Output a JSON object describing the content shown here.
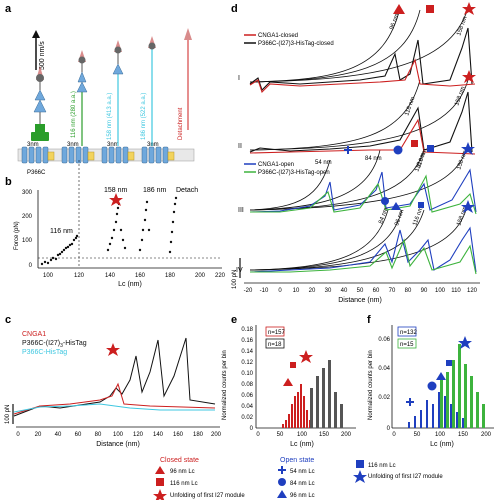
{
  "panels": {
    "a": "a",
    "b": "b",
    "c": "c",
    "d": "d",
    "e": "e",
    "f": "f"
  },
  "a": {
    "velocity": "500 nm/s",
    "segments": [
      "116 nm (280 a.a.)",
      "158 nm (413 a.a.)",
      "186 nm (522 a.a.)"
    ],
    "detachment": "Detachment",
    "construct": "P366C",
    "scale_label": "3nm"
  },
  "b": {
    "ylabel": "Force (pN)",
    "xlabel": "Lc (nm)",
    "yticks": [
      "300",
      "200",
      "100",
      "0"
    ],
    "xticks": [
      "100",
      "120",
      "140",
      "160",
      "180",
      "200",
      "220"
    ],
    "annotations": [
      "116 nm",
      "158 nm",
      "186 nm",
      "Detach"
    ]
  },
  "c": {
    "legend": [
      "CNGA1",
      "P366C-(I27)3-HisTag",
      "P366C-HisTag"
    ],
    "legend_main": "P366C-(I27)",
    "legend_sub": "3",
    "legend_tail": "-HisTag",
    "scale": "100 pN",
    "xlabel": "Distance (nm)",
    "xticks": [
      "0",
      "20",
      "40",
      "60",
      "80",
      "100",
      "120",
      "140",
      "160",
      "180",
      "200"
    ]
  },
  "d": {
    "legend_closed": [
      "CNGA1-closed",
      "P366C-(I27)3-HisTag-closed"
    ],
    "legend_open": [
      "CNGA1-open",
      "P366C-(I27)3-HisTag-open"
    ],
    "rows": [
      "I",
      "II",
      "III",
      "IV"
    ],
    "scale": "100 pN",
    "xlabel": "Distance (nm)",
    "xticks": [
      "-20",
      "-10",
      "0",
      "10",
      "20",
      "30",
      "40",
      "50",
      "60",
      "70",
      "80",
      "90",
      "100",
      "110",
      "120"
    ],
    "row1_labels": [
      "96 nm",
      "116 nm",
      "158 nm"
    ],
    "row2_labels": [
      "116 nm",
      "158 nm"
    ],
    "row3_labels": [
      "54 nm",
      "84 nm",
      "116 nm",
      "158 nm"
    ],
    "row4_labels": [
      "84 nm",
      "96 nm",
      "116 nm",
      "158 nm"
    ]
  },
  "e": {
    "ylabel": "Normalized counts per bin",
    "xlabel": "Lc (nm)",
    "n1": "n=157",
    "n2": "n=18",
    "yticks": [
      "0.18",
      "0.16",
      "0.14",
      "0.12",
      "0.10",
      "0.08",
      "0.06",
      "0.04",
      "0.02",
      "0"
    ],
    "xticks": [
      "0",
      "50",
      "100",
      "150",
      "200"
    ]
  },
  "f": {
    "ylabel": "Normalized counts per bin",
    "xlabel": "Lc (nm)",
    "n1": "n=132",
    "n2": "n=15",
    "yticks": [
      "0.06",
      "0.04",
      "0.02",
      "0"
    ],
    "xticks": [
      "0",
      "50",
      "100",
      "150",
      "200"
    ]
  },
  "legend_bottom": {
    "closed_title": "Closed state",
    "open_title": "Open state",
    "closed": [
      "96 nm Lc",
      "116 nm Lc",
      "Unfolding of first I27 module"
    ],
    "open": [
      "54 nm Lc",
      "84 nm Lc",
      "96 nm Lc"
    ],
    "third": [
      "116 nm Lc",
      "Unfolding of first I27 module"
    ]
  },
  "colors": {
    "red": "#cc1f1f",
    "black": "#111111",
    "cyan": "#3ec7e0",
    "blue": "#1f3fbf",
    "green": "#3db33d",
    "darkred": "#8b0000"
  }
}
